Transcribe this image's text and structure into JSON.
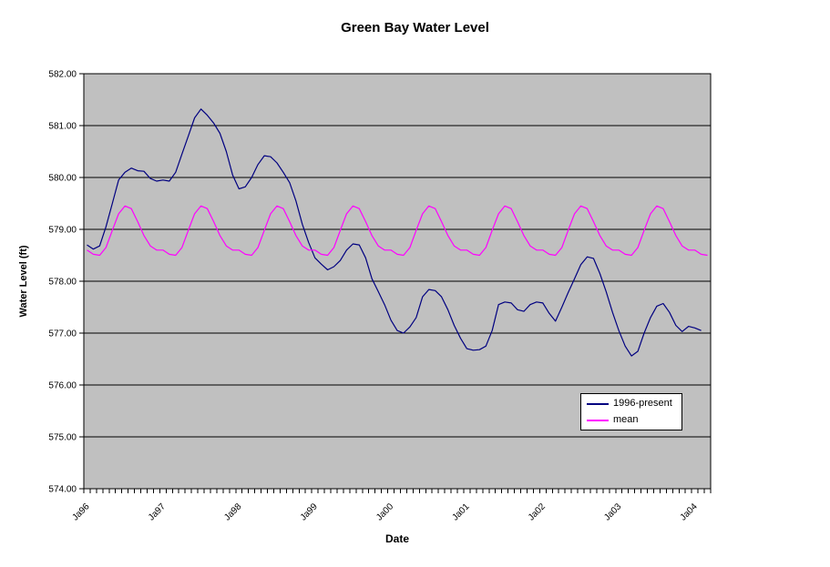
{
  "colors": {
    "canvas": "#FFFFFF",
    "plot_bg": "#C0C0C0",
    "grid": "#000000",
    "text": "#000000",
    "series_1996_present": "#000080",
    "series_mean": "#FF00FF"
  },
  "chart_data": {
    "type": "line",
    "title": "Green Bay Water Level",
    "xlabel": "Date",
    "ylabel": "Water Level (ft)",
    "ylim": [
      574,
      582
    ],
    "y_tick_step": 1.0,
    "y_tick_labels": [
      "574.00",
      "575.00",
      "576.00",
      "577.00",
      "578.00",
      "579.00",
      "580.00",
      "581.00",
      "582.00"
    ],
    "x_tick_labels": [
      "Ja96",
      "Ja97",
      "Ja98",
      "Ja99",
      "Ja00",
      "Ja01",
      "Ja02",
      "Ja03",
      "Ja04"
    ],
    "x_tick_interval": 12,
    "x_frequency": "monthly",
    "n_points": 99,
    "grid": "horizontal-major",
    "legend_position": "inside-lower-right",
    "series": [
      {
        "name": "1996-present",
        "color": "#000080",
        "values": [
          578.7,
          578.62,
          578.68,
          579.05,
          579.5,
          579.95,
          580.1,
          580.18,
          580.13,
          580.12,
          579.98,
          579.93,
          579.95,
          579.93,
          580.1,
          580.45,
          580.8,
          581.15,
          581.32,
          581.2,
          581.05,
          580.85,
          580.5,
          580.05,
          579.78,
          579.82,
          580.0,
          580.25,
          580.42,
          580.4,
          580.28,
          580.1,
          579.9,
          579.55,
          579.1,
          578.75,
          578.45,
          578.33,
          578.22,
          578.28,
          578.4,
          578.6,
          578.72,
          578.7,
          578.45,
          578.05,
          577.8,
          577.55,
          577.25,
          577.05,
          577.0,
          577.12,
          577.3,
          577.7,
          577.84,
          577.82,
          577.7,
          577.45,
          577.15,
          576.9,
          576.7,
          576.67,
          576.68,
          576.75,
          577.05,
          577.55,
          577.6,
          577.58,
          577.45,
          577.42,
          577.55,
          577.6,
          577.58,
          577.38,
          577.23,
          577.5,
          577.78,
          578.05,
          578.32,
          578.47,
          578.44,
          578.15,
          577.8,
          577.4,
          577.05,
          576.75,
          576.56,
          576.65,
          577.0,
          577.3,
          577.52,
          577.57,
          577.4,
          577.15,
          577.03,
          577.13,
          577.1,
          577.05
        ]
      },
      {
        "name": "mean",
        "color": "#FF00FF",
        "values": [
          578.6,
          578.52,
          578.5,
          578.65,
          578.98,
          579.3,
          579.45,
          579.4,
          579.15,
          578.88,
          578.68,
          578.6,
          578.6,
          578.52,
          578.5,
          578.65,
          578.98,
          579.3,
          579.45,
          579.4,
          579.15,
          578.88,
          578.68,
          578.6,
          578.6,
          578.52,
          578.5,
          578.65,
          578.98,
          579.3,
          579.45,
          579.4,
          579.15,
          578.88,
          578.68,
          578.6,
          578.6,
          578.52,
          578.5,
          578.65,
          578.98,
          579.3,
          579.45,
          579.4,
          579.15,
          578.88,
          578.68,
          578.6,
          578.6,
          578.52,
          578.5,
          578.65,
          578.98,
          579.3,
          579.45,
          579.4,
          579.15,
          578.88,
          578.68,
          578.6,
          578.6,
          578.52,
          578.5,
          578.65,
          578.98,
          579.3,
          579.45,
          579.4,
          579.15,
          578.88,
          578.68,
          578.6,
          578.6,
          578.52,
          578.5,
          578.65,
          578.98,
          579.3,
          579.45,
          579.4,
          579.15,
          578.88,
          578.68,
          578.6,
          578.6,
          578.52,
          578.5,
          578.65,
          578.98,
          579.3,
          579.45,
          579.4,
          579.15,
          578.88,
          578.68,
          578.6,
          578.6,
          578.52,
          578.5
        ]
      }
    ]
  }
}
